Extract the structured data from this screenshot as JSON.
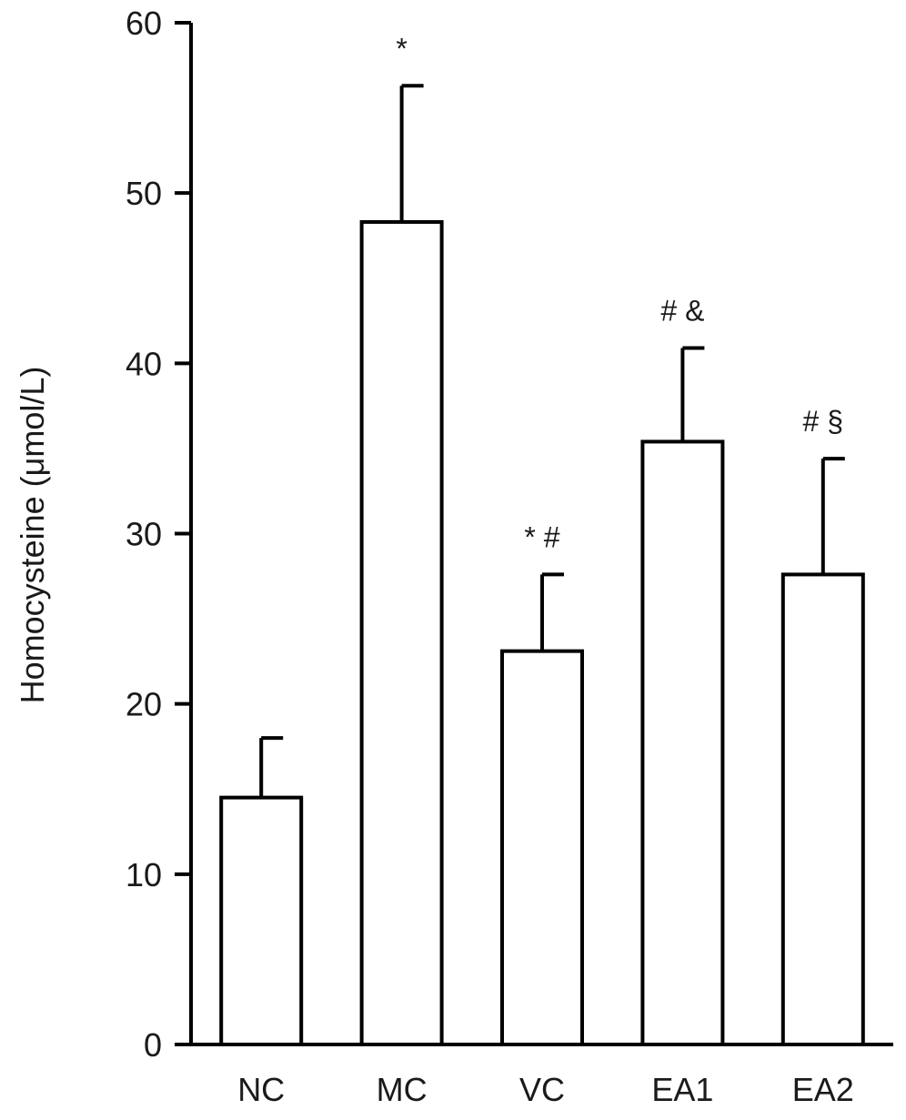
{
  "chart_data": {
    "type": "bar",
    "title": "",
    "xlabel": "",
    "ylabel": "Homocysteine (μmol/L)",
    "ylim": [
      0,
      60
    ],
    "yticks": [
      0,
      10,
      20,
      30,
      40,
      50,
      60
    ],
    "grid": false,
    "legend": "none",
    "categories": [
      "NC",
      "MC",
      "VC",
      "EA1",
      "EA2"
    ],
    "values": [
      14.5,
      48.3,
      23.1,
      35.4,
      27.6
    ],
    "error_upper": [
      18.0,
      56.3,
      27.6,
      40.9,
      34.4
    ],
    "annotations": [
      "",
      "*",
      "* #",
      "# &",
      "# §"
    ],
    "bar_fill": "#ffffff",
    "bar_stroke": "#000000",
    "axis_color": "#000000"
  }
}
